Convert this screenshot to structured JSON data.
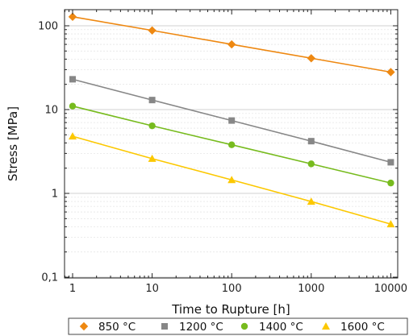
{
  "chart_data": {
    "type": "line",
    "xlabel": "Time to Rupture [h]",
    "ylabel": "Stress [MPa]",
    "x_scale": "log",
    "y_scale": "log",
    "xlim": [
      0.8,
      12000
    ],
    "ylim": [
      0.1,
      150
    ],
    "x_ticks": [
      1,
      10,
      100,
      1000,
      10000
    ],
    "x_tick_labels": [
      "1",
      "10",
      "100",
      "1000",
      "10000"
    ],
    "y_ticks": [
      0.1,
      1,
      10,
      100
    ],
    "y_tick_labels": [
      "0,1",
      "1",
      "10",
      "100"
    ],
    "grid": true,
    "legend_position": "bottom",
    "x": [
      1,
      10,
      100,
      1000,
      10000
    ],
    "series": [
      {
        "name": "850 °C",
        "marker": "diamond",
        "color": "#ee8811",
        "values": [
          128,
          88,
          60,
          41,
          28
        ]
      },
      {
        "name": "1200 °C",
        "marker": "square",
        "color": "#878787",
        "values": [
          23,
          13,
          7.4,
          4.2,
          2.35
        ]
      },
      {
        "name": "1400 °C",
        "marker": "circle",
        "color": "#77bb1e",
        "values": [
          11,
          6.4,
          3.8,
          2.25,
          1.33
        ]
      },
      {
        "name": "1600 °C",
        "marker": "triangle",
        "color": "#fcc800",
        "values": [
          4.8,
          2.6,
          1.45,
          0.8,
          0.43
        ]
      }
    ]
  }
}
